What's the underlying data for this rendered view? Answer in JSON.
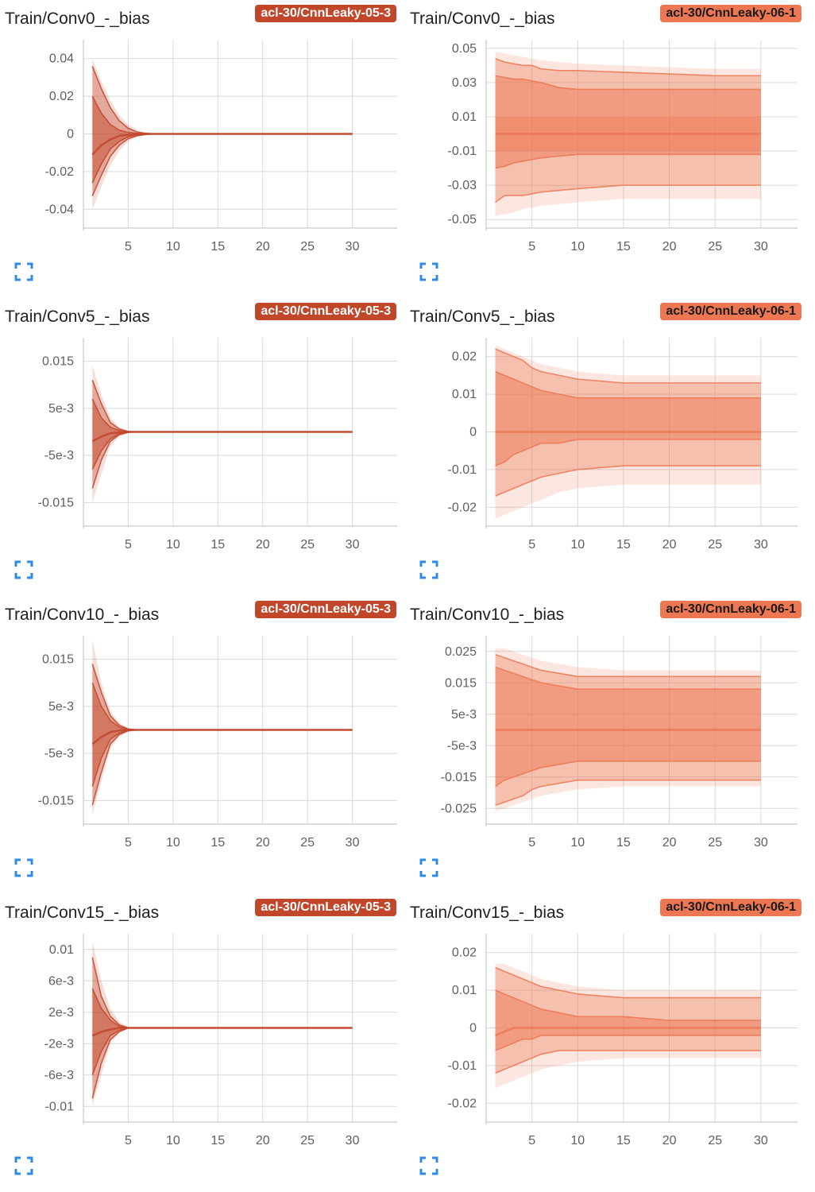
{
  "colors": {
    "run_05_3": "#c2472a",
    "run_06_1": "#ec7752",
    "grid": "#d9d9d9",
    "expand_icon": "#2f8be6"
  },
  "icons": {
    "expand": "expand-icon"
  },
  "cards": [
    {
      "title": "Train/Conv0_-_bias",
      "run": "acl-30/CnnLeaky-05-3",
      "run_key": "run_05_3"
    },
    {
      "title": "Train/Conv0_-_bias",
      "run": "acl-30/CnnLeaky-06-1",
      "run_key": "run_06_1"
    },
    {
      "title": "Train/Conv5_-_bias",
      "run": "acl-30/CnnLeaky-05-3",
      "run_key": "run_05_3"
    },
    {
      "title": "Train/Conv5_-_bias",
      "run": "acl-30/CnnLeaky-06-1",
      "run_key": "run_06_1"
    },
    {
      "title": "Train/Conv10_-_bias",
      "run": "acl-30/CnnLeaky-05-3",
      "run_key": "run_05_3"
    },
    {
      "title": "Train/Conv10_-_bias",
      "run": "acl-30/CnnLeaky-06-1",
      "run_key": "run_06_1"
    },
    {
      "title": "Train/Conv15_-_bias",
      "run": "acl-30/CnnLeaky-05-3",
      "run_key": "run_05_3"
    },
    {
      "title": "Train/Conv15_-_bias",
      "run": "acl-30/CnnLeaky-06-1",
      "run_key": "run_06_1"
    }
  ],
  "chart_data": [
    {
      "type": "area",
      "title": "Train/Conv0_-_bias",
      "run": "acl-30/CnnLeaky-05-3",
      "xlim": [
        0,
        35
      ],
      "ylim": [
        -0.05,
        0.05
      ],
      "xticks": [
        5,
        10,
        15,
        20,
        25,
        30
      ],
      "yticks": [
        0.04,
        0.02,
        0,
        -0.02,
        -0.04
      ],
      "ytick_labels": [
        "0.04",
        "0.02",
        "0",
        "-0.02",
        "-0.04"
      ],
      "steps": [
        1,
        2,
        3,
        4,
        5,
        6,
        7,
        8,
        10,
        15,
        20,
        25,
        30
      ],
      "percentile_bands": [
        [
          0.04,
          0.028,
          0.018,
          0.01,
          0.005,
          0.002,
          0.0005,
          0,
          0,
          0,
          0,
          0,
          0
        ],
        [
          0.036,
          0.024,
          0.014,
          0.007,
          0.003,
          0.001,
          0.0003,
          0,
          0,
          0,
          0,
          0,
          0
        ],
        [
          0.02,
          0.011,
          0.005,
          0.002,
          0.0008,
          0.0003,
          0.0001,
          0,
          0,
          0,
          0,
          0,
          0
        ],
        [
          -0.011,
          -0.006,
          -0.003,
          -0.001,
          -0.0005,
          -0.0002,
          0,
          0,
          0,
          0,
          0,
          0,
          0
        ],
        [
          -0.026,
          -0.016,
          -0.008,
          -0.004,
          -0.0015,
          -0.0005,
          -0.0001,
          0,
          0,
          0,
          0,
          0,
          0
        ],
        [
          -0.033,
          -0.022,
          -0.012,
          -0.006,
          -0.0025,
          -0.001,
          -0.0003,
          0,
          0,
          0,
          0,
          0,
          0
        ],
        [
          -0.04,
          -0.028,
          -0.017,
          -0.009,
          -0.004,
          -0.0015,
          -0.0005,
          0,
          0,
          0,
          0,
          0,
          0
        ]
      ]
    },
    {
      "type": "area",
      "title": "Train/Conv0_-_bias",
      "run": "acl-30/CnnLeaky-06-1",
      "xlim": [
        0,
        34
      ],
      "ylim": [
        -0.055,
        0.055
      ],
      "xticks": [
        5,
        10,
        15,
        20,
        25,
        30
      ],
      "yticks": [
        0.05,
        0.03,
        0.01,
        -0.01,
        -0.03,
        -0.05
      ],
      "ytick_labels": [
        "0.05",
        "0.03",
        "0.01",
        "-0.01",
        "-0.03",
        "-0.05"
      ],
      "steps": [
        1,
        2,
        3,
        4,
        5,
        6,
        8,
        10,
        15,
        20,
        25,
        30
      ],
      "percentile_bands": [
        [
          0.048,
          0.047,
          0.046,
          0.045,
          0.044,
          0.043,
          0.042,
          0.041,
          0.04,
          0.039,
          0.038,
          0.038
        ],
        [
          0.044,
          0.042,
          0.041,
          0.04,
          0.04,
          0.038,
          0.037,
          0.037,
          0.036,
          0.035,
          0.034,
          0.034
        ],
        [
          0.034,
          0.033,
          0.032,
          0.032,
          0.031,
          0.03,
          0.027,
          0.026,
          0.026,
          0.026,
          0.026,
          0.026
        ],
        [
          0.0,
          0.0,
          0.0,
          0.0,
          0.0,
          0.0,
          0.0,
          0.0,
          0.0,
          0.0,
          0.0,
          0.0
        ],
        [
          -0.02,
          -0.019,
          -0.017,
          -0.016,
          -0.015,
          -0.014,
          -0.013,
          -0.012,
          -0.012,
          -0.012,
          -0.012,
          -0.012
        ],
        [
          -0.04,
          -0.036,
          -0.036,
          -0.036,
          -0.035,
          -0.034,
          -0.033,
          -0.032,
          -0.03,
          -0.03,
          -0.03,
          -0.03
        ],
        [
          -0.048,
          -0.047,
          -0.046,
          -0.044,
          -0.043,
          -0.042,
          -0.041,
          -0.04,
          -0.038,
          -0.038,
          -0.038,
          -0.038
        ]
      ],
      "inner_band": [
        0.01,
        -0.01
      ]
    },
    {
      "type": "area",
      "title": "Train/Conv5_-_bias",
      "run": "acl-30/CnnLeaky-05-3",
      "xlim": [
        0,
        35
      ],
      "ylim": [
        -0.02,
        0.02
      ],
      "xticks": [
        5,
        10,
        15,
        20,
        25,
        30
      ],
      "yticks": [
        0.015,
        0.005,
        -0.005,
        -0.015
      ],
      "ytick_labels": [
        "0.015",
        "5e-3",
        "-5e-3",
        "-0.015"
      ],
      "steps": [
        1,
        2,
        3,
        4,
        5,
        6,
        10,
        15,
        20,
        25,
        30
      ],
      "percentile_bands": [
        [
          0.014,
          0.008,
          0.003,
          0.001,
          0.0002,
          0,
          0,
          0,
          0,
          0,
          0
        ],
        [
          0.011,
          0.006,
          0.002,
          0.0006,
          0.0001,
          0,
          0,
          0,
          0,
          0,
          0
        ],
        [
          0.007,
          0.003,
          0.001,
          0.0003,
          0,
          0,
          0,
          0,
          0,
          0,
          0
        ],
        [
          -0.002,
          -0.001,
          -0.0003,
          -0.0001,
          0,
          0,
          0,
          0,
          0,
          0,
          0
        ],
        [
          -0.008,
          -0.004,
          -0.0015,
          -0.0004,
          0,
          0,
          0,
          0,
          0,
          0,
          0
        ],
        [
          -0.012,
          -0.006,
          -0.002,
          -0.0006,
          -0.0001,
          0,
          0,
          0,
          0,
          0,
          0
        ],
        [
          -0.015,
          -0.009,
          -0.003,
          -0.001,
          -0.0002,
          0,
          0,
          0,
          0,
          0,
          0
        ]
      ]
    },
    {
      "type": "area",
      "title": "Train/Conv5_-_bias",
      "run": "acl-30/CnnLeaky-06-1",
      "xlim": [
        0,
        34
      ],
      "ylim": [
        -0.025,
        0.025
      ],
      "xticks": [
        5,
        10,
        15,
        20,
        25,
        30
      ],
      "yticks": [
        0.02,
        0.01,
        0,
        -0.01,
        -0.02
      ],
      "ytick_labels": [
        "0.02",
        "0.01",
        "0",
        "-0.01",
        "-0.02"
      ],
      "steps": [
        1,
        2,
        3,
        4,
        5,
        6,
        8,
        10,
        15,
        20,
        25,
        30
      ],
      "percentile_bands": [
        [
          0.023,
          0.022,
          0.021,
          0.02,
          0.019,
          0.018,
          0.017,
          0.016,
          0.015,
          0.015,
          0.015,
          0.015
        ],
        [
          0.022,
          0.021,
          0.02,
          0.019,
          0.017,
          0.016,
          0.015,
          0.014,
          0.013,
          0.013,
          0.013,
          0.013
        ],
        [
          0.016,
          0.015,
          0.014,
          0.013,
          0.012,
          0.011,
          0.01,
          0.009,
          0.009,
          0.009,
          0.009,
          0.009
        ],
        [
          0.0,
          0.0,
          0.0,
          0.0,
          0.0,
          0.0,
          0.0,
          0.0,
          0.0,
          0.0,
          0.0,
          0.0
        ],
        [
          -0.009,
          -0.008,
          -0.006,
          -0.005,
          -0.004,
          -0.003,
          -0.003,
          -0.002,
          -0.002,
          -0.002,
          -0.002,
          -0.002
        ],
        [
          -0.017,
          -0.016,
          -0.015,
          -0.014,
          -0.013,
          -0.012,
          -0.011,
          -0.01,
          -0.009,
          -0.009,
          -0.009,
          -0.009
        ],
        [
          -0.023,
          -0.022,
          -0.021,
          -0.02,
          -0.019,
          -0.018,
          -0.016,
          -0.015,
          -0.014,
          -0.014,
          -0.014,
          -0.014
        ]
      ]
    },
    {
      "type": "area",
      "title": "Train/Conv10_-_bias",
      "run": "acl-30/CnnLeaky-05-3",
      "xlim": [
        0,
        35
      ],
      "ylim": [
        -0.02,
        0.02
      ],
      "xticks": [
        5,
        10,
        15,
        20,
        25,
        30
      ],
      "yticks": [
        0.015,
        0.005,
        -0.005,
        -0.015
      ],
      "ytick_labels": [
        "0.015",
        "5e-3",
        "-5e-3",
        "-0.015"
      ],
      "steps": [
        1,
        2,
        3,
        4,
        5,
        6,
        10,
        15,
        20,
        25,
        30
      ],
      "percentile_bands": [
        [
          0.019,
          0.01,
          0.004,
          0.0015,
          0.0003,
          0,
          0,
          0,
          0,
          0,
          0
        ],
        [
          0.014,
          0.008,
          0.003,
          0.001,
          0.0002,
          0,
          0,
          0,
          0,
          0,
          0
        ],
        [
          0.01,
          0.005,
          0.002,
          0.0006,
          0.0001,
          0,
          0,
          0,
          0,
          0,
          0
        ],
        [
          -0.003,
          -0.0015,
          -0.0005,
          -0.0001,
          0,
          0,
          0,
          0,
          0,
          0,
          0
        ],
        [
          -0.012,
          -0.006,
          -0.002,
          -0.0007,
          -0.0001,
          0,
          0,
          0,
          0,
          0,
          0
        ],
        [
          -0.016,
          -0.009,
          -0.003,
          -0.001,
          -0.0002,
          0,
          0,
          0,
          0,
          0,
          0
        ],
        [
          -0.018,
          -0.011,
          -0.004,
          -0.0015,
          -0.0003,
          0,
          0,
          0,
          0,
          0,
          0
        ]
      ]
    },
    {
      "type": "area",
      "title": "Train/Conv10_-_bias",
      "run": "acl-30/CnnLeaky-06-1",
      "xlim": [
        0,
        34
      ],
      "ylim": [
        -0.03,
        0.03
      ],
      "xticks": [
        5,
        10,
        15,
        20,
        25,
        30
      ],
      "yticks": [
        0.025,
        0.015,
        0.005,
        -0.005,
        -0.015,
        -0.025
      ],
      "ytick_labels": [
        "0.025",
        "0.015",
        "5e-3",
        "-5e-3",
        "-0.015",
        "-0.025"
      ],
      "steps": [
        1,
        2,
        3,
        4,
        5,
        6,
        8,
        10,
        15,
        20,
        25,
        30
      ],
      "percentile_bands": [
        [
          0.026,
          0.026,
          0.025,
          0.024,
          0.023,
          0.022,
          0.021,
          0.02,
          0.019,
          0.019,
          0.019,
          0.019
        ],
        [
          0.024,
          0.023,
          0.022,
          0.021,
          0.02,
          0.019,
          0.018,
          0.017,
          0.017,
          0.017,
          0.017,
          0.017
        ],
        [
          0.02,
          0.019,
          0.018,
          0.017,
          0.016,
          0.015,
          0.014,
          0.013,
          0.013,
          0.013,
          0.013,
          0.013
        ],
        [
          0.0,
          0.0,
          0.0,
          0.0,
          0.0,
          0.0,
          0.0,
          0.0,
          0.0,
          0.0,
          0.0,
          0.0
        ],
        [
          -0.018,
          -0.016,
          -0.015,
          -0.014,
          -0.013,
          -0.012,
          -0.011,
          -0.01,
          -0.01,
          -0.01,
          -0.01,
          -0.01
        ],
        [
          -0.024,
          -0.023,
          -0.022,
          -0.021,
          -0.019,
          -0.018,
          -0.017,
          -0.016,
          -0.016,
          -0.016,
          -0.016,
          -0.016
        ],
        [
          -0.026,
          -0.025,
          -0.024,
          -0.023,
          -0.022,
          -0.021,
          -0.02,
          -0.019,
          -0.018,
          -0.018,
          -0.018,
          -0.018
        ]
      ]
    },
    {
      "type": "area",
      "title": "Train/Conv15_-_bias",
      "run": "acl-30/CnnLeaky-05-3",
      "xlim": [
        0,
        35
      ],
      "ylim": [
        -0.012,
        0.012
      ],
      "xticks": [
        5,
        10,
        15,
        20,
        25,
        30
      ],
      "yticks": [
        0.01,
        0.006,
        0.002,
        -0.002,
        -0.006,
        -0.01
      ],
      "ytick_labels": [
        "0.01",
        "6e-3",
        "2e-3",
        "-2e-3",
        "-6e-3",
        "-0.01"
      ],
      "steps": [
        1,
        2,
        3,
        4,
        5,
        10,
        15,
        20,
        25,
        30
      ],
      "percentile_bands": [
        [
          0.011,
          0.006,
          0.0025,
          0.0008,
          0.0001,
          0,
          0,
          0,
          0,
          0
        ],
        [
          0.009,
          0.004,
          0.0015,
          0.0004,
          0,
          0,
          0,
          0,
          0,
          0
        ],
        [
          0.005,
          0.0025,
          0.001,
          0.0002,
          0,
          0,
          0,
          0,
          0,
          0
        ],
        [
          -0.001,
          -0.0005,
          -0.0002,
          0,
          0,
          0,
          0,
          0,
          0,
          0
        ],
        [
          -0.006,
          -0.003,
          -0.001,
          -0.0003,
          0,
          0,
          0,
          0,
          0,
          0
        ],
        [
          -0.009,
          -0.0045,
          -0.0015,
          -0.0005,
          0,
          0,
          0,
          0,
          0,
          0
        ],
        [
          -0.01,
          -0.006,
          -0.002,
          -0.0006,
          -0.0001,
          0,
          0,
          0,
          0,
          0
        ]
      ]
    },
    {
      "type": "area",
      "title": "Train/Conv15_-_bias",
      "run": "acl-30/CnnLeaky-06-1",
      "xlim": [
        0,
        34
      ],
      "ylim": [
        -0.025,
        0.025
      ],
      "xticks": [
        5,
        10,
        15,
        20,
        25,
        30
      ],
      "yticks": [
        0.02,
        0.01,
        0,
        -0.01,
        -0.02
      ],
      "ytick_labels": [
        "0.02",
        "0.01",
        "0",
        "-0.01",
        "-0.02"
      ],
      "steps": [
        1,
        2,
        3,
        4,
        5,
        6,
        8,
        10,
        15,
        20,
        25,
        30
      ],
      "percentile_bands": [
        [
          0.017,
          0.017,
          0.016,
          0.015,
          0.014,
          0.013,
          0.012,
          0.011,
          0.01,
          0.01,
          0.01,
          0.01
        ],
        [
          0.016,
          0.015,
          0.014,
          0.013,
          0.012,
          0.011,
          0.01,
          0.009,
          0.008,
          0.008,
          0.008,
          0.008
        ],
        [
          0.01,
          0.009,
          0.008,
          0.007,
          0.006,
          0.005,
          0.004,
          0.003,
          0.003,
          0.002,
          0.002,
          0.002
        ],
        [
          -0.002,
          -0.001,
          0.0,
          0.0,
          0.0,
          0.0,
          0.0,
          0.0,
          0.0,
          0.0,
          0.0,
          0.0
        ],
        [
          -0.006,
          -0.005,
          -0.004,
          -0.003,
          -0.003,
          -0.002,
          -0.002,
          -0.002,
          -0.002,
          -0.002,
          -0.002,
          -0.002
        ],
        [
          -0.012,
          -0.011,
          -0.01,
          -0.009,
          -0.008,
          -0.007,
          -0.006,
          -0.006,
          -0.006,
          -0.006,
          -0.006,
          -0.006
        ],
        [
          -0.016,
          -0.015,
          -0.014,
          -0.013,
          -0.012,
          -0.011,
          -0.01,
          -0.009,
          -0.008,
          -0.008,
          -0.008,
          -0.008
        ]
      ]
    }
  ]
}
